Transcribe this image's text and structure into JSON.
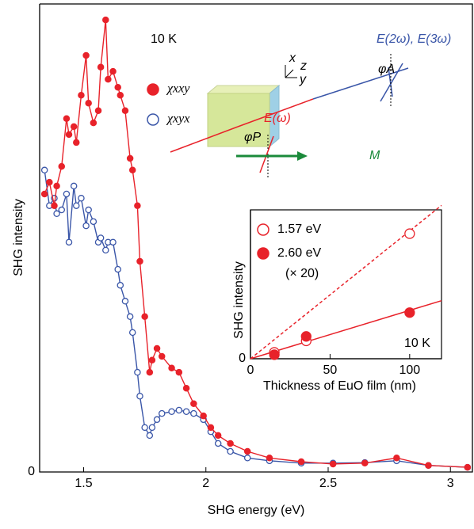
{
  "chart_data": [
    {
      "type": "line",
      "xlabel": "SHG energy (eV)",
      "ylabel": "SHG intensity",
      "xlim": [
        1.32,
        3.09
      ],
      "ylim": [
        0,
        100
      ],
      "xticks": [
        1.5,
        2.0,
        2.5,
        3.0
      ],
      "yticks": [
        0
      ],
      "x": [
        1.34,
        1.36,
        1.38,
        1.39,
        1.41,
        1.43,
        1.44,
        1.46,
        1.47,
        1.49,
        1.51,
        1.52,
        1.54,
        1.56,
        1.57,
        1.59,
        1.6,
        1.62,
        1.64,
        1.65,
        1.67,
        1.69,
        1.7,
        1.72,
        1.73,
        1.75,
        1.77,
        1.78,
        1.8,
        1.82,
        1.86,
        1.89,
        1.92,
        1.95,
        1.99,
        2.02,
        2.05,
        2.1,
        2.17,
        2.26,
        2.39,
        2.52,
        2.65,
        2.78,
        2.91,
        3.07
      ],
      "series": [
        {
          "name": "χxxy",
          "color": "#e8222a",
          "filled": true,
          "values": [
            59.4,
            61.9,
            56.9,
            61.1,
            65.3,
            75.5,
            72.1,
            73.8,
            70.4,
            80.5,
            89.0,
            78.8,
            74.6,
            77.2,
            86.5,
            96.6,
            83.9,
            85.6,
            82.2,
            80.5,
            77.2,
            67.0,
            64.5,
            56.9,
            45.0,
            33.2,
            21.3,
            23.9,
            26.4,
            24.7,
            22.2,
            21.3,
            17.9,
            14.6,
            12.0,
            9.5,
            7.8,
            6.1,
            4.4,
            3.0,
            2.2,
            1.7,
            1.9,
            3.0,
            1.4,
            1.0
          ]
        },
        {
          "name": "χxyx",
          "color": "#3a56a8",
          "filled": false,
          "values": [
            64.5,
            56.9,
            58.5,
            55.2,
            56.0,
            59.4,
            49.1,
            61.1,
            56.9,
            58.5,
            52.6,
            56.0,
            53.5,
            49.1,
            50.0,
            47.4,
            49.1,
            49.1,
            43.3,
            39.9,
            36.5,
            33.2,
            29.8,
            21.3,
            16.2,
            9.5,
            7.8,
            9.5,
            11.2,
            12.5,
            12.9,
            13.2,
            12.9,
            12.5,
            11.2,
            8.6,
            6.1,
            4.4,
            3.0,
            2.4,
            1.9,
            1.9,
            2.0,
            2.4,
            1.4,
            1.0
          ]
        }
      ],
      "annotations": [
        "10 K",
        "x",
        "z",
        "y",
        "E(2ω), E(3ω)",
        "φA",
        "E(ω)",
        "φP",
        "M"
      ]
    },
    {
      "type": "scatter",
      "xlabel": "Thickness of EuO film (nm)",
      "ylabel": "SHG intensity",
      "xlim": [
        0,
        120
      ],
      "ylim": [
        0,
        10
      ],
      "xticks": [
        0,
        50,
        100
      ],
      "yticks": [
        0
      ],
      "series": [
        {
          "name": "1.57 eV",
          "color": "#e8222a",
          "filled": false,
          "x": [
            15,
            35,
            100
          ],
          "values": [
            0.43,
            1.2,
            8.4
          ]
        },
        {
          "name": "2.60 eV",
          "color": "#e8222a",
          "filled": true,
          "x": [
            15,
            35,
            100
          ],
          "values": [
            0.27,
            1.5,
            3.1
          ]
        }
      ],
      "lines": [
        {
          "color": "#e8222a",
          "dashed": true,
          "x": [
            0,
            120
          ],
          "values": [
            0,
            10.3
          ]
        },
        {
          "color": "#e8222a",
          "dashed": false,
          "x": [
            0,
            120
          ],
          "values": [
            0,
            3.9
          ]
        }
      ],
      "note": "(× 20)",
      "annotations": [
        "10 K"
      ]
    }
  ]
}
